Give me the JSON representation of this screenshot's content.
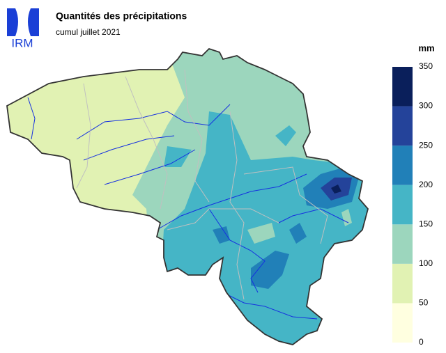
{
  "header": {
    "logo": "IRM",
    "title": "Quantités des précipitations",
    "subtitle": "cumul juillet 2021"
  },
  "legend": {
    "unit": "mm",
    "ticks": [
      0,
      50,
      100,
      150,
      200,
      250,
      300,
      350
    ],
    "colors": [
      "#ffffe0",
      "#e1f2b3",
      "#9cd6bd",
      "#45b5c6",
      "#2180b8",
      "#24439a",
      "#0a1f5b"
    ]
  }
}
